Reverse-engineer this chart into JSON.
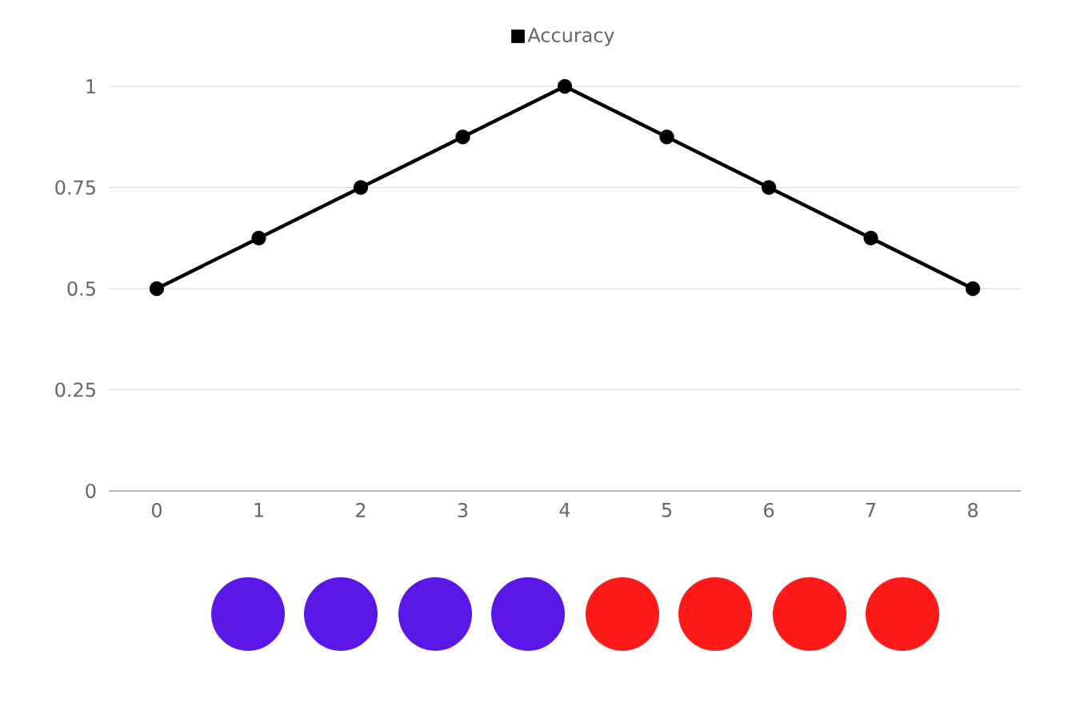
{
  "chart_data": {
    "type": "line",
    "categories": [
      "0",
      "1",
      "2",
      "3",
      "4",
      "5",
      "6",
      "7",
      "8"
    ],
    "series": [
      {
        "name": "Accuracy",
        "color": "#000000",
        "values": [
          0.5,
          0.625,
          0.75,
          0.875,
          1,
          0.875,
          0.75,
          0.625,
          0.5
        ]
      }
    ],
    "ylim": [
      0,
      1
    ],
    "yticks": [
      0,
      0.25,
      0.5,
      0.75,
      1
    ],
    "grid": "y",
    "legend": "top",
    "marker": "circle",
    "line_style": "solid"
  }
}
